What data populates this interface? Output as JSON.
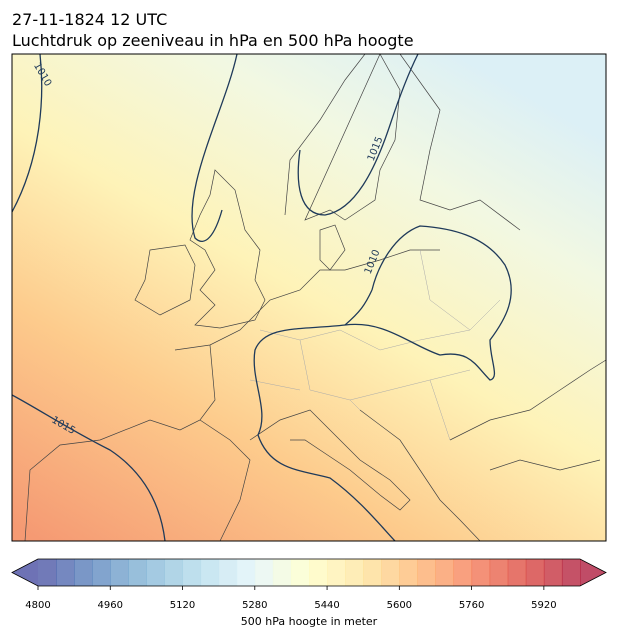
{
  "header": {
    "title_line1": "27-11-1824 12 UTC",
    "title_line2": "Luchtdruk op zeeniveau in hPa en 500 hPa hoogte"
  },
  "map": {
    "contour_labels": [
      "1010",
      "1015",
      "1010",
      "1015"
    ]
  },
  "colorbar": {
    "label": "500 hPa hoogte in meter",
    "range": [
      4800,
      6000
    ],
    "step": 40,
    "colormap": "RdYlBu_r",
    "ticks": [
      4800,
      4960,
      5120,
      5280,
      5440,
      5600,
      5760,
      5920
    ]
  }
}
